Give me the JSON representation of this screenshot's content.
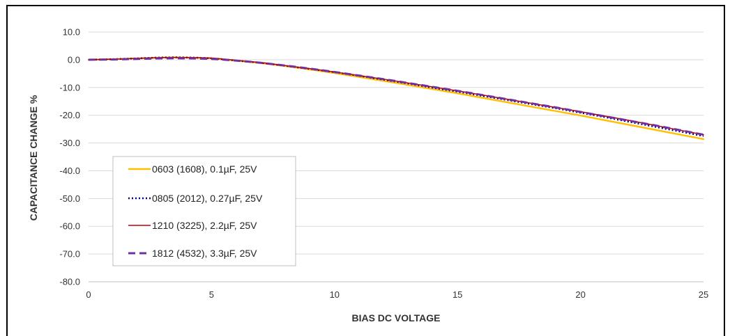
{
  "chart_data": {
    "type": "line",
    "title": "",
    "xlabel": "BIAS DC VOLTAGE",
    "ylabel": "CAPACITANCE CHANGE %",
    "xlim": [
      0,
      25
    ],
    "ylim": [
      -80,
      10
    ],
    "x_ticks": [
      "0",
      "5",
      "10",
      "15",
      "20",
      "25"
    ],
    "y_ticks": [
      "10.0",
      "0.0",
      "-10.0",
      "-20.0",
      "-30.0",
      "-40.0",
      "-50.0",
      "-60.0",
      "-70.0",
      "-80.0"
    ],
    "grid": "horizontal",
    "legend_position": "lower-left",
    "x": [
      0,
      1,
      2,
      3,
      4,
      5,
      6,
      7,
      8,
      9,
      10,
      11,
      12,
      13,
      14,
      15,
      16,
      17,
      18,
      19,
      20,
      21,
      22,
      23,
      24,
      25
    ],
    "series": [
      {
        "name": "0603 (1608), 0.1µF, 25V",
        "color": "#FFC000",
        "style": "solid",
        "values": [
          0,
          0.2,
          0.5,
          0.8,
          0.8,
          0.5,
          -0.3,
          -1.2,
          -2.3,
          -3.5,
          -4.8,
          -6.2,
          -7.6,
          -9.1,
          -10.6,
          -12.1,
          -13.7,
          -15.3,
          -16.9,
          -18.5,
          -20.1,
          -21.8,
          -23.5,
          -25.2,
          -26.9,
          -28.6
        ]
      },
      {
        "name": "0805 (2012), 0.27µF, 25V",
        "color": "#00008B",
        "style": "dotted",
        "values": [
          0,
          0.2,
          0.5,
          0.8,
          0.8,
          0.5,
          -0.3,
          -1.1,
          -2.2,
          -3.3,
          -4.5,
          -5.8,
          -7.2,
          -8.6,
          -10.1,
          -11.5,
          -13.0,
          -14.5,
          -16.0,
          -17.5,
          -19.1,
          -20.7,
          -22.4,
          -24.1,
          -25.8,
          -27.5
        ]
      },
      {
        "name": "1210 (3225), 2.2µF, 25V",
        "color": "#C00000",
        "style": "solid-thin",
        "values": [
          0,
          0.2,
          0.5,
          0.8,
          0.8,
          0.6,
          -0.2,
          -1.0,
          -2.1,
          -3.2,
          -4.4,
          -5.7,
          -7.0,
          -8.4,
          -9.8,
          -11.2,
          -12.7,
          -14.2,
          -15.7,
          -17.2,
          -18.7,
          -20.3,
          -21.9,
          -23.6,
          -25.3,
          -27.0
        ]
      },
      {
        "name": "1812 (4532), 3.3µF, 25V",
        "color": "#7030A0",
        "style": "dashed",
        "values": [
          0,
          0.1,
          0.3,
          0.5,
          0.5,
          0.3,
          -0.3,
          -1.1,
          -2.1,
          -3.2,
          -4.4,
          -5.7,
          -7.0,
          -8.4,
          -9.8,
          -11.2,
          -12.7,
          -14.2,
          -15.7,
          -17.2,
          -18.8,
          -20.4,
          -22.0,
          -23.6,
          -25.3,
          -27.0
        ]
      }
    ]
  }
}
